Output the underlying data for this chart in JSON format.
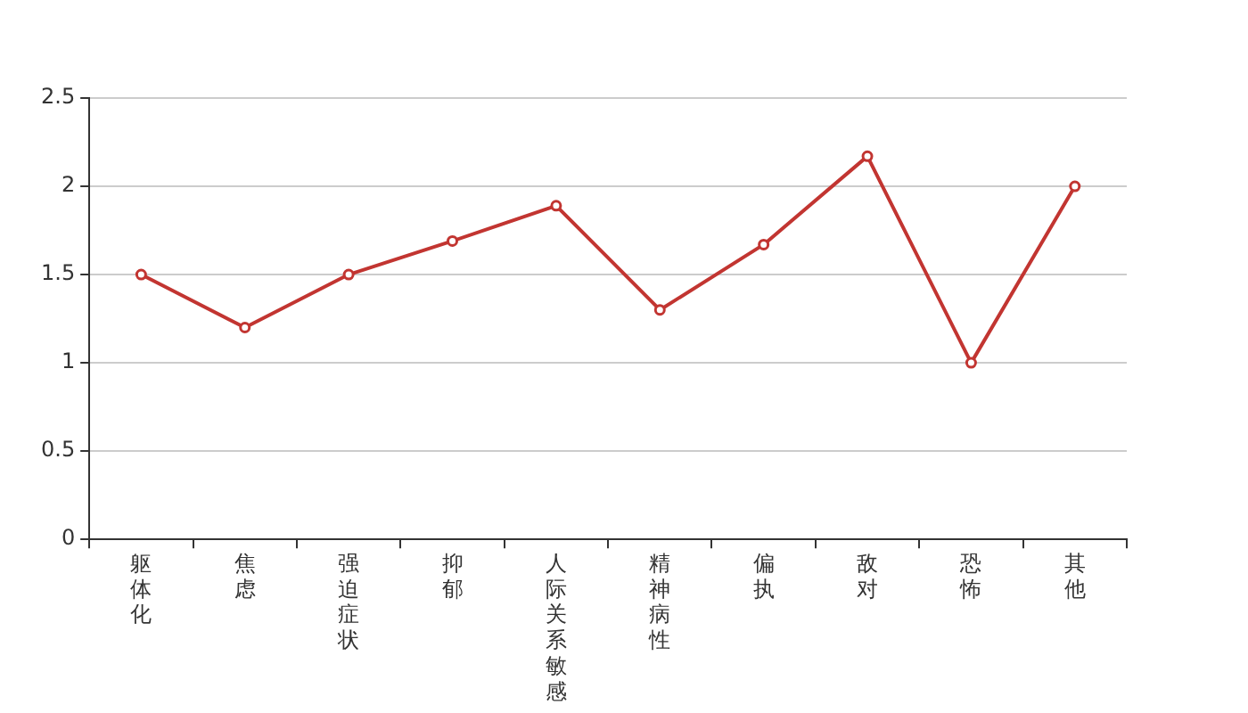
{
  "chart_data": {
    "type": "line",
    "categories": [
      "躯体化",
      "焦虑",
      "强迫症状",
      "抑郁",
      "人际关系敏感",
      "精神病性",
      "偏执",
      "敌对",
      "恐怖",
      "其他"
    ],
    "series": [
      {
        "color": "#c23531",
        "values": [
          1.5,
          1.2,
          1.5,
          1.69,
          1.89,
          1.3,
          1.67,
          2.17,
          1.0,
          2.0
        ]
      }
    ],
    "ylim": [
      0,
      2.5
    ],
    "yticks": [
      0,
      0.5,
      1,
      1.5,
      2,
      2.5
    ],
    "grid": "y",
    "legend": false,
    "marker": "circle",
    "line_style": "solid"
  }
}
